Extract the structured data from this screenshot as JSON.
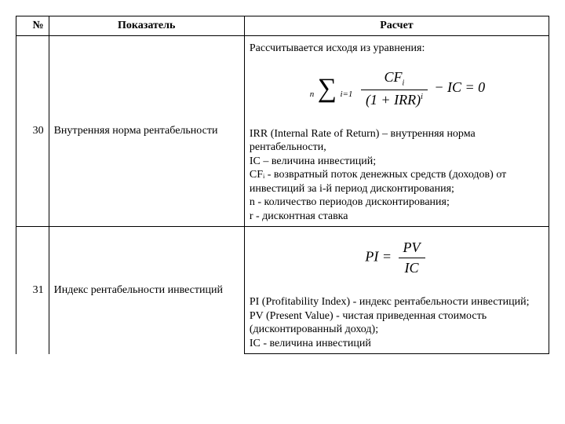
{
  "colors": {
    "border": "#000000",
    "background": "#ffffff",
    "text": "#000000"
  },
  "fonts": {
    "family": "Times New Roman",
    "base_size_pt": 11
  },
  "table": {
    "headers": {
      "num": "№",
      "indicator": "Показатель",
      "calc": "Расчет"
    },
    "rows": [
      {
        "num": "30",
        "indicator": "Внутренняя норма рентабельности",
        "intro": "Рассчитывается исходя из уравнения:",
        "formula": {
          "type": "sum-equation",
          "sum_upper": "n",
          "sum_lower": "i=1",
          "frac_num": "CFᵢ",
          "frac_num_sub": "i",
          "frac_num_base": "CF",
          "frac_den_base": "(1 + IRR)",
          "frac_den_sup": "i",
          "tail": "− IC = 0"
        },
        "desc_lines": [
          "IRR (Internal Rate of Return) – внутренняя норма рентабельности,",
          "IC – величина инвестиций;",
          "CFᵢ - возвратный поток денежных средств (доходов) от инвестиций за i-й период дисконтирования;",
          "n - количество периодов дисконтирования;",
          "r - дисконтная ставка"
        ]
      },
      {
        "num": "31",
        "indicator": "Индекс рентабельности инвестиций",
        "formula": {
          "type": "simple-frac",
          "lhs": "PI =",
          "frac_num": "PV",
          "frac_den": "IC"
        },
        "desc_lines": [
          "PI (Profitability Index) - индекс рентабельности инвестиций;",
          "PV (Present Value) - чистая приведенная стоимость (дисконтированный доход);",
          "IC - величина инвестиций"
        ]
      }
    ]
  }
}
